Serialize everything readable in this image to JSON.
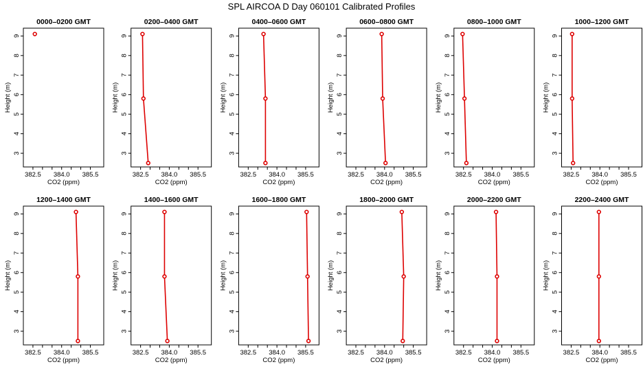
{
  "title": "SPL AIRCOA D  Day 060101  Calibrated Profiles",
  "chart_data": {
    "type": "line",
    "xlabel": "CO2 (ppm)",
    "ylabel": "Height (m)",
    "xlim": [
      382.0,
      386.2
    ],
    "ylim": [
      2.3,
      9.4
    ],
    "xticks": [
      382.5,
      384.0,
      385.5
    ],
    "xtick_labels": [
      "382.5",
      "384.0",
      "385.5"
    ],
    "xticks_unlabeled": [
      383.0,
      383.5,
      384.5,
      385.0
    ],
    "yticks": [
      3,
      4,
      5,
      6,
      7,
      8,
      9
    ],
    "yticks_labels": [
      "3",
      "4",
      "5",
      "6",
      "7",
      "8",
      "9"
    ],
    "series_color": "#dd0000",
    "panels": [
      {
        "title": "0000–0200 GMT",
        "points": [
          {
            "x": 382.6,
            "y": 9.1
          }
        ]
      },
      {
        "title": "0200–0400 GMT",
        "points": [
          {
            "x": 382.6,
            "y": 9.1
          },
          {
            "x": 382.65,
            "y": 5.8
          },
          {
            "x": 382.9,
            "y": 2.5
          }
        ]
      },
      {
        "title": "0400–0600 GMT",
        "points": [
          {
            "x": 383.3,
            "y": 9.1
          },
          {
            "x": 383.4,
            "y": 5.8
          },
          {
            "x": 383.4,
            "y": 2.5
          }
        ]
      },
      {
        "title": "0600–0800 GMT",
        "points": [
          {
            "x": 383.85,
            "y": 9.1
          },
          {
            "x": 383.9,
            "y": 5.8
          },
          {
            "x": 384.05,
            "y": 2.5
          }
        ]
      },
      {
        "title": "0800–1000 GMT",
        "points": [
          {
            "x": 382.45,
            "y": 9.1
          },
          {
            "x": 382.55,
            "y": 5.8
          },
          {
            "x": 382.65,
            "y": 2.5
          }
        ]
      },
      {
        "title": "1000–1200 GMT",
        "points": [
          {
            "x": 382.55,
            "y": 9.1
          },
          {
            "x": 382.55,
            "y": 5.8
          },
          {
            "x": 382.6,
            "y": 2.5
          }
        ]
      },
      {
        "title": "1200–1400 GMT",
        "points": [
          {
            "x": 384.75,
            "y": 9.1
          },
          {
            "x": 384.85,
            "y": 5.8
          },
          {
            "x": 384.85,
            "y": 2.5
          }
        ]
      },
      {
        "title": "1400–1600 GMT",
        "points": [
          {
            "x": 383.75,
            "y": 9.1
          },
          {
            "x": 383.75,
            "y": 5.8
          },
          {
            "x": 383.9,
            "y": 2.5
          }
        ]
      },
      {
        "title": "1600–1800 GMT",
        "points": [
          {
            "x": 385.55,
            "y": 9.1
          },
          {
            "x": 385.6,
            "y": 5.8
          },
          {
            "x": 385.65,
            "y": 2.5
          }
        ]
      },
      {
        "title": "1800–2000 GMT",
        "points": [
          {
            "x": 384.9,
            "y": 9.1
          },
          {
            "x": 385.0,
            "y": 5.8
          },
          {
            "x": 384.95,
            "y": 2.5
          }
        ]
      },
      {
        "title": "2000–2200 GMT",
        "points": [
          {
            "x": 384.2,
            "y": 9.1
          },
          {
            "x": 384.25,
            "y": 5.8
          },
          {
            "x": 384.25,
            "y": 2.5
          }
        ]
      },
      {
        "title": "2200–2400 GMT",
        "points": [
          {
            "x": 383.95,
            "y": 9.1
          },
          {
            "x": 383.95,
            "y": 5.8
          },
          {
            "x": 383.95,
            "y": 2.5
          }
        ]
      }
    ]
  }
}
